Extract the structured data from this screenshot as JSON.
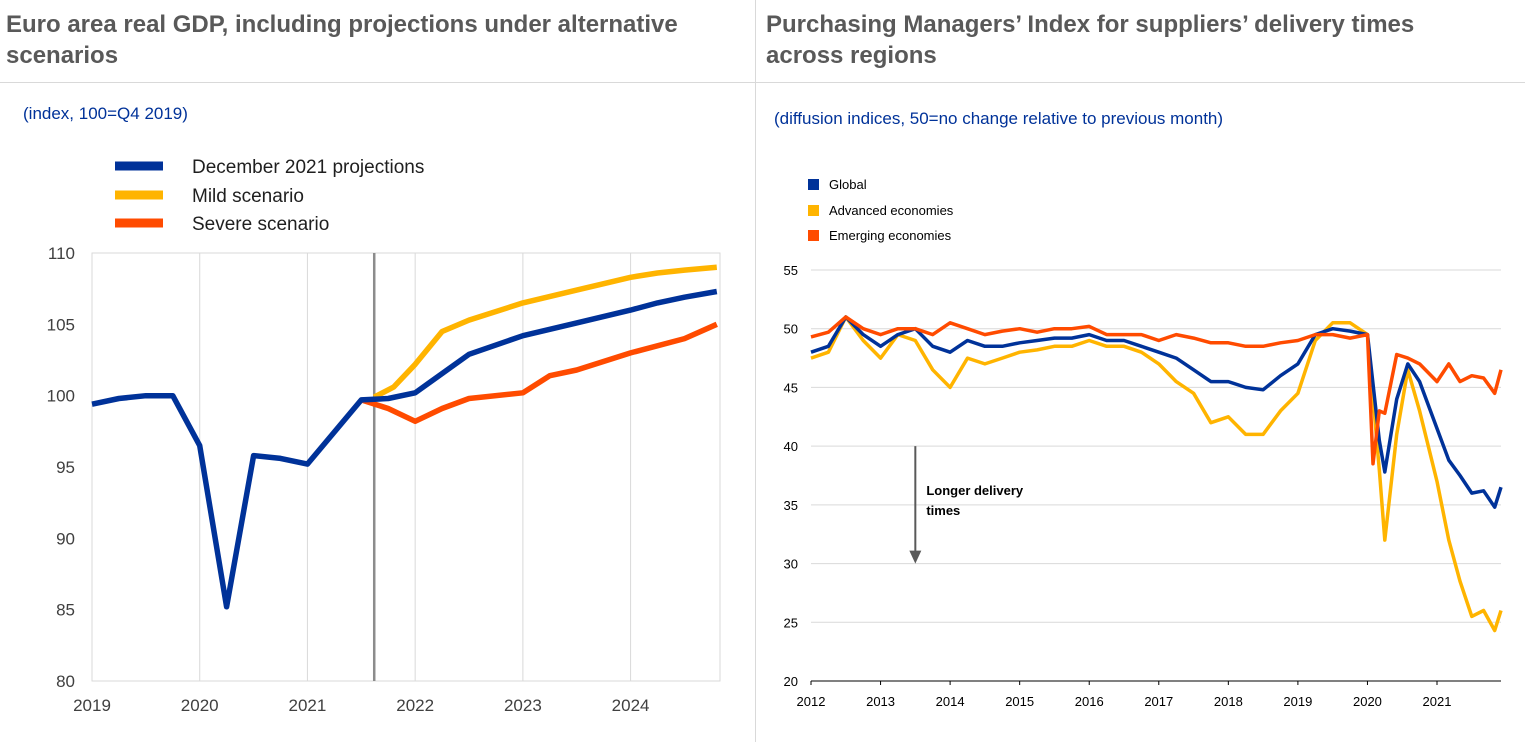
{
  "panels": [
    {
      "title": "Euro area real GDP, including projections under alternative scenarios",
      "subtitle": "(index, 100=Q4 2019)"
    },
    {
      "title": "Purchasing Managers’ Index for suppliers’ delivery times across regions",
      "subtitle": "(diffusion indices, 50=no change relative to previous month)"
    }
  ],
  "chart_data": [
    {
      "type": "line",
      "title": "Euro area real GDP, including projections under alternative scenarios",
      "subtitle": "(index, 100=Q4 2019)",
      "xlabel": "",
      "ylabel": "",
      "xlim": [
        2019.0,
        2024.83
      ],
      "ylim": [
        80,
        110
      ],
      "x_ticks": [
        "2019",
        "2020",
        "2021",
        "2022",
        "2023",
        "2024"
      ],
      "y_ticks": [
        80,
        85,
        90,
        95,
        100,
        105,
        110
      ],
      "grid": "vertical at year ticks",
      "legend_position": "top-left",
      "projection_marker": "vertical line at 2021.62",
      "series": [
        {
          "name": "December 2021 projections",
          "color": "#003299",
          "points": [
            [
              2019.0,
              99.4
            ],
            [
              2019.25,
              99.8
            ],
            [
              2019.5,
              100.0
            ],
            [
              2019.75,
              100.0
            ],
            [
              2020.0,
              96.5
            ],
            [
              2020.25,
              85.2
            ],
            [
              2020.5,
              95.8
            ],
            [
              2020.75,
              95.6
            ],
            [
              2021.0,
              95.2
            ],
            [
              2021.5,
              99.7
            ],
            [
              2021.75,
              99.8
            ],
            [
              2022.0,
              100.2
            ],
            [
              2022.5,
              102.9
            ],
            [
              2023.0,
              104.2
            ],
            [
              2023.5,
              105.1
            ],
            [
              2024.0,
              106.0
            ],
            [
              2024.25,
              106.5
            ],
            [
              2024.5,
              106.9
            ],
            [
              2024.8,
              107.3
            ]
          ]
        },
        {
          "name": "Mild scenario",
          "color": "#FFB400",
          "points": [
            [
              2021.62,
              99.9
            ],
            [
              2021.8,
              100.6
            ],
            [
              2022.0,
              102.2
            ],
            [
              2022.25,
              104.5
            ],
            [
              2022.5,
              105.3
            ],
            [
              2023.0,
              106.5
            ],
            [
              2023.5,
              107.4
            ],
            [
              2024.0,
              108.3
            ],
            [
              2024.25,
              108.6
            ],
            [
              2024.5,
              108.8
            ],
            [
              2024.8,
              109.0
            ]
          ]
        },
        {
          "name": "Severe scenario",
          "color": "#FF4B00",
          "points": [
            [
              2021.5,
              99.7
            ],
            [
              2021.75,
              99.1
            ],
            [
              2022.0,
              98.2
            ],
            [
              2022.25,
              99.1
            ],
            [
              2022.5,
              99.8
            ],
            [
              2023.0,
              100.2
            ],
            [
              2023.25,
              101.4
            ],
            [
              2023.5,
              101.8
            ],
            [
              2024.0,
              103.0
            ],
            [
              2024.5,
              104.0
            ],
            [
              2024.8,
              105.0
            ]
          ]
        }
      ]
    },
    {
      "type": "line",
      "title": "Purchasing Managers’ Index for suppliers’ delivery times across regions",
      "subtitle": "(diffusion indices, 50=no change relative to previous month)",
      "xlabel": "",
      "ylabel": "",
      "xlim": [
        2012.0,
        2021.92
      ],
      "ylim": [
        20,
        55
      ],
      "x_ticks": [
        "2012",
        "2013",
        "2014",
        "2015",
        "2016",
        "2017",
        "2018",
        "2019",
        "2020",
        "2021"
      ],
      "y_ticks": [
        20,
        25,
        30,
        35,
        40,
        45,
        50,
        55
      ],
      "grid": "horizontal at y ticks",
      "legend_position": "top-left",
      "annotation": {
        "text_lines": [
          "Longer delivery",
          "times"
        ],
        "x": 2013.5,
        "y_from": 40,
        "y_to": 30
      },
      "series": [
        {
          "name": "Global",
          "color": "#003299",
          "points": [
            [
              2012.0,
              48.0
            ],
            [
              2012.25,
              48.5
            ],
            [
              2012.5,
              51.0
            ],
            [
              2012.75,
              49.5
            ],
            [
              2013.0,
              48.5
            ],
            [
              2013.25,
              49.5
            ],
            [
              2013.5,
              50.0
            ],
            [
              2013.75,
              48.5
            ],
            [
              2014.0,
              48.0
            ],
            [
              2014.25,
              49.0
            ],
            [
              2014.5,
              48.5
            ],
            [
              2014.75,
              48.5
            ],
            [
              2015.0,
              48.8
            ],
            [
              2015.25,
              49.0
            ],
            [
              2015.5,
              49.2
            ],
            [
              2015.75,
              49.2
            ],
            [
              2016.0,
              49.5
            ],
            [
              2016.25,
              49.0
            ],
            [
              2016.5,
              49.0
            ],
            [
              2016.75,
              48.5
            ],
            [
              2017.0,
              48.0
            ],
            [
              2017.25,
              47.5
            ],
            [
              2017.5,
              46.5
            ],
            [
              2017.75,
              45.5
            ],
            [
              2018.0,
              45.5
            ],
            [
              2018.25,
              45.0
            ],
            [
              2018.5,
              44.8
            ],
            [
              2018.75,
              46.0
            ],
            [
              2019.0,
              47.0
            ],
            [
              2019.25,
              49.5
            ],
            [
              2019.5,
              50.0
            ],
            [
              2019.75,
              49.8
            ],
            [
              2020.0,
              49.5
            ],
            [
              2020.17,
              40.5
            ],
            [
              2020.25,
              37.8
            ],
            [
              2020.42,
              44.0
            ],
            [
              2020.58,
              47.0
            ],
            [
              2020.75,
              45.5
            ],
            [
              2021.0,
              41.5
            ],
            [
              2021.17,
              38.8
            ],
            [
              2021.33,
              37.5
            ],
            [
              2021.5,
              36.0
            ],
            [
              2021.67,
              36.2
            ],
            [
              2021.83,
              34.8
            ],
            [
              2021.92,
              36.5
            ]
          ]
        },
        {
          "name": "Advanced economies",
          "color": "#FFB400",
          "points": [
            [
              2012.0,
              47.5
            ],
            [
              2012.25,
              48.0
            ],
            [
              2012.5,
              51.0
            ],
            [
              2012.75,
              49.0
            ],
            [
              2013.0,
              47.5
            ],
            [
              2013.25,
              49.5
            ],
            [
              2013.5,
              49.0
            ],
            [
              2013.75,
              46.5
            ],
            [
              2014.0,
              45.0
            ],
            [
              2014.25,
              47.5
            ],
            [
              2014.5,
              47.0
            ],
            [
              2014.75,
              47.5
            ],
            [
              2015.0,
              48.0
            ],
            [
              2015.25,
              48.2
            ],
            [
              2015.5,
              48.5
            ],
            [
              2015.75,
              48.5
            ],
            [
              2016.0,
              49.0
            ],
            [
              2016.25,
              48.5
            ],
            [
              2016.5,
              48.5
            ],
            [
              2016.75,
              48.0
            ],
            [
              2017.0,
              47.0
            ],
            [
              2017.25,
              45.5
            ],
            [
              2017.5,
              44.5
            ],
            [
              2017.75,
              42.0
            ],
            [
              2018.0,
              42.5
            ],
            [
              2018.25,
              41.0
            ],
            [
              2018.5,
              41.0
            ],
            [
              2018.75,
              43.0
            ],
            [
              2019.0,
              44.5
            ],
            [
              2019.25,
              49.0
            ],
            [
              2019.5,
              50.5
            ],
            [
              2019.75,
              50.5
            ],
            [
              2020.0,
              49.5
            ],
            [
              2020.17,
              38.0
            ],
            [
              2020.25,
              32.0
            ],
            [
              2020.42,
              41.0
            ],
            [
              2020.58,
              46.5
            ],
            [
              2020.75,
              43.0
            ],
            [
              2021.0,
              37.0
            ],
            [
              2021.17,
              32.0
            ],
            [
              2021.33,
              28.5
            ],
            [
              2021.5,
              25.5
            ],
            [
              2021.67,
              26.0
            ],
            [
              2021.83,
              24.3
            ],
            [
              2021.92,
              26.0
            ]
          ]
        },
        {
          "name": "Emerging economies",
          "color": "#FF4B00",
          "points": [
            [
              2012.0,
              49.3
            ],
            [
              2012.25,
              49.7
            ],
            [
              2012.5,
              51.0
            ],
            [
              2012.75,
              50.0
            ],
            [
              2013.0,
              49.5
            ],
            [
              2013.25,
              50.0
            ],
            [
              2013.5,
              50.0
            ],
            [
              2013.75,
              49.5
            ],
            [
              2014.0,
              50.5
            ],
            [
              2014.25,
              50.0
            ],
            [
              2014.5,
              49.5
            ],
            [
              2014.75,
              49.8
            ],
            [
              2015.0,
              50.0
            ],
            [
              2015.25,
              49.7
            ],
            [
              2015.5,
              50.0
            ],
            [
              2015.75,
              50.0
            ],
            [
              2016.0,
              50.2
            ],
            [
              2016.25,
              49.5
            ],
            [
              2016.5,
              49.5
            ],
            [
              2016.75,
              49.5
            ],
            [
              2017.0,
              49.0
            ],
            [
              2017.25,
              49.5
            ],
            [
              2017.5,
              49.2
            ],
            [
              2017.75,
              48.8
            ],
            [
              2018.0,
              48.8
            ],
            [
              2018.25,
              48.5
            ],
            [
              2018.5,
              48.5
            ],
            [
              2018.75,
              48.8
            ],
            [
              2019.0,
              49.0
            ],
            [
              2019.25,
              49.5
            ],
            [
              2019.5,
              49.5
            ],
            [
              2019.75,
              49.2
            ],
            [
              2020.0,
              49.5
            ],
            [
              2020.08,
              38.5
            ],
            [
              2020.17,
              43.0
            ],
            [
              2020.25,
              42.8
            ],
            [
              2020.42,
              47.8
            ],
            [
              2020.58,
              47.5
            ],
            [
              2020.75,
              47.0
            ],
            [
              2021.0,
              45.5
            ],
            [
              2021.17,
              47.0
            ],
            [
              2021.33,
              45.5
            ],
            [
              2021.5,
              46.0
            ],
            [
              2021.67,
              45.8
            ],
            [
              2021.83,
              44.5
            ],
            [
              2021.92,
              46.5
            ]
          ]
        }
      ]
    }
  ]
}
